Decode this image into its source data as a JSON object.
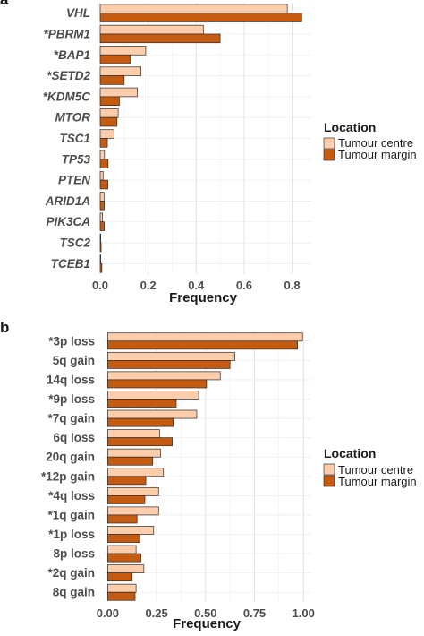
{
  "chart_data": [
    {
      "panel": "a",
      "type": "bar",
      "orientation": "horizontal",
      "categories": [
        "VHL",
        "*PBRM1",
        "*BAP1",
        "*SETD2",
        "*KDM5C",
        "MTOR",
        "TSC1",
        "TP53",
        "PTEN",
        "ARID1A",
        "PIK3CA",
        "TSC2",
        "TCEB1"
      ],
      "category_style": "bold-italic",
      "series": [
        {
          "name": "Tumour centre",
          "color": "#FDCDAC",
          "values": [
            0.78,
            0.43,
            0.19,
            0.17,
            0.155,
            0.075,
            0.058,
            0.018,
            0.012,
            0.016,
            0.01,
            0.002,
            0.002
          ]
        },
        {
          "name": "Tumour margin",
          "color": "#C55A11",
          "values": [
            0.84,
            0.5,
            0.125,
            0.1,
            0.08,
            0.07,
            0.03,
            0.033,
            0.032,
            0.017,
            0.017,
            0.004,
            0.007
          ]
        }
      ],
      "xlabel": "Frequency",
      "xlim": [
        0,
        0.88
      ],
      "xticks": [
        0.0,
        0.2,
        0.4,
        0.6,
        0.8
      ],
      "xtick_labels": [
        "0.0",
        "0.2",
        "0.4",
        "0.6",
        "0.8"
      ],
      "grid": true,
      "legend": {
        "title": "Location",
        "position": "right",
        "entries": [
          "Tumour centre",
          "Tumour margin"
        ]
      }
    },
    {
      "panel": "b",
      "type": "bar",
      "orientation": "horizontal",
      "categories": [
        "*3p loss",
        "5q gain",
        "14q loss",
        "*9p loss",
        "*7q gain",
        "6q loss",
        "20q gain",
        "*12p gain",
        "*4q loss",
        "*1q gain",
        "*1p loss",
        "8p loss",
        "*2q gain",
        "8q gain"
      ],
      "category_style": "bold",
      "series": [
        {
          "name": "Tumour centre",
          "color": "#FDCDAC",
          "values": [
            0.995,
            0.65,
            0.575,
            0.465,
            0.455,
            0.265,
            0.27,
            0.285,
            0.26,
            0.26,
            0.235,
            0.145,
            0.185,
            0.145
          ]
        },
        {
          "name": "Tumour margin",
          "color": "#C55A11",
          "values": [
            0.97,
            0.625,
            0.505,
            0.35,
            0.335,
            0.33,
            0.23,
            0.195,
            0.19,
            0.15,
            0.165,
            0.17,
            0.125,
            0.14
          ]
        }
      ],
      "xlabel": "Frequency",
      "xlim": [
        -0.02,
        1.04
      ],
      "xticks": [
        0.0,
        0.25,
        0.5,
        0.75,
        1.0
      ],
      "xtick_labels": [
        "0.00",
        "0.25",
        "0.50",
        "0.75",
        "1.00"
      ],
      "grid": true,
      "legend": {
        "title": "Location",
        "position": "right",
        "entries": [
          "Tumour centre",
          "Tumour margin"
        ]
      }
    }
  ]
}
